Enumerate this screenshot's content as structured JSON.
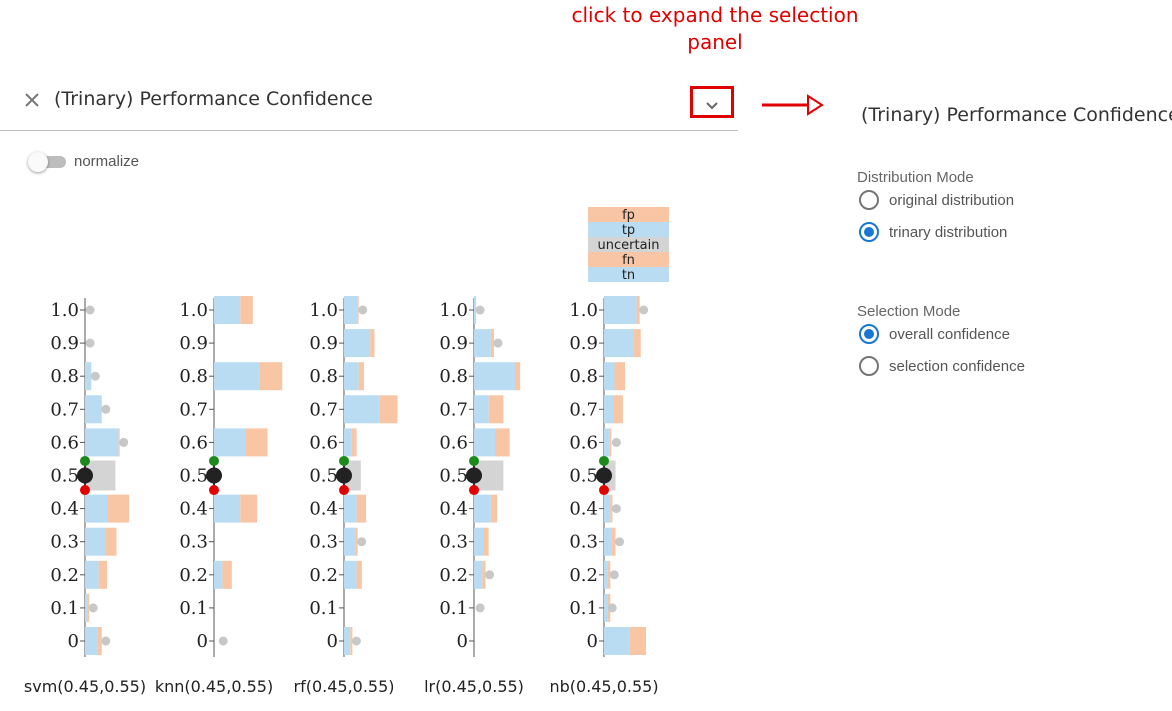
{
  "annotation": {
    "text": "click to expand the selection panel",
    "color": "#e00000"
  },
  "header": {
    "title": "(Trinary) Performance Confidence",
    "close_icon": "close-icon",
    "expand_icon": "chevron-down-icon"
  },
  "normalize": {
    "label": "normalize",
    "enabled": false
  },
  "panel": {
    "title": "(Trinary) Performance Confidence",
    "distribution_mode": {
      "label": "Distribution Mode",
      "options": [
        {
          "label": "original distribution",
          "checked": false
        },
        {
          "label": "trinary distribution",
          "checked": true
        }
      ]
    },
    "selection_mode": {
      "label": "Selection Mode",
      "options": [
        {
          "label": "overall confidence",
          "checked": true
        },
        {
          "label": "selection confidence",
          "checked": false
        }
      ]
    }
  },
  "colors": {
    "tp": "#b9dcf2",
    "tn": "#b9dcf2",
    "fp": "#f8c6a5",
    "fn": "#f8c6a5",
    "uncertain": "#d4d4d4",
    "dot": "#c8c8c8",
    "upper_handle": "#1b8a1b",
    "lower_handle": "#e00000",
    "center_handle": "#222222"
  },
  "chart_data": {
    "type": "bar",
    "orientation": "horizontal",
    "legend": {
      "placement": "top-right",
      "entries": [
        "fp",
        "tp",
        "uncertain",
        "fn",
        "tn"
      ]
    },
    "ticks": [
      "0",
      "0.1",
      "0.2",
      "0.3",
      "0.4",
      "0.5",
      "0.6",
      "0.7",
      "0.8",
      "0.9",
      "1.0"
    ],
    "ylim": [
      0,
      1.0
    ],
    "models": [
      {
        "label": "svm(0.45,0.55)",
        "lower": 0.45,
        "upper": 0.55,
        "upper_bins": [
          {
            "y": 1.0,
            "correct": 0,
            "error": 0,
            "dot": 1
          },
          {
            "y": 0.9,
            "correct": 0,
            "error": 0,
            "dot": 1
          },
          {
            "y": 0.8,
            "correct": 6,
            "error": 0,
            "dot": 6
          },
          {
            "y": 0.7,
            "correct": 16,
            "error": 0,
            "dot": 16
          },
          {
            "y": 0.6,
            "correct": 32,
            "error": 1,
            "dot": 33
          }
        ],
        "uncertain": 29,
        "lower_bins": [
          {
            "y": 0.4,
            "correct": 21,
            "error": 21,
            "dot": null
          },
          {
            "y": 0.3,
            "correct": 20,
            "error": 10,
            "dot": null
          },
          {
            "y": 0.2,
            "correct": 13,
            "error": 8,
            "dot": null
          },
          {
            "y": 0.1,
            "correct": 2,
            "error": 2,
            "dot": 4
          },
          {
            "y": 0,
            "correct": 12,
            "error": 4,
            "dot": 16
          }
        ]
      },
      {
        "label": "knn(0.45,0.55)",
        "lower": 0.45,
        "upper": 0.55,
        "upper_bins": [
          {
            "y": 1.0,
            "correct": 25,
            "error": 12,
            "dot": null
          },
          {
            "y": 0.9,
            "correct": 0,
            "error": 0,
            "dot": null
          },
          {
            "y": 0.8,
            "correct": 43,
            "error": 22,
            "dot": null
          },
          {
            "y": 0.7,
            "correct": 0,
            "error": 0,
            "dot": null
          },
          {
            "y": 0.6,
            "correct": 30,
            "error": 21,
            "dot": null
          }
        ],
        "uncertain": 0,
        "lower_bins": [
          {
            "y": 0.4,
            "correct": 25,
            "error": 16,
            "dot": null
          },
          {
            "y": 0.3,
            "correct": 0,
            "error": 0,
            "dot": null
          },
          {
            "y": 0.2,
            "correct": 8,
            "error": 9,
            "dot": null
          },
          {
            "y": 0.1,
            "correct": 0,
            "error": 0,
            "dot": null
          },
          {
            "y": 0,
            "correct": 0,
            "error": 0,
            "dot": 5
          }
        ]
      },
      {
        "label": "rf(0.45,0.55)",
        "lower": 0.45,
        "upper": 0.55,
        "upper_bins": [
          {
            "y": 1.0,
            "correct": 13,
            "error": 1,
            "dot": 14
          },
          {
            "y": 0.9,
            "correct": 25,
            "error": 4,
            "dot": null
          },
          {
            "y": 0.8,
            "correct": 14,
            "error": 5,
            "dot": null
          },
          {
            "y": 0.7,
            "correct": 34,
            "error": 17,
            "dot": null
          },
          {
            "y": 0.6,
            "correct": 7,
            "error": 5,
            "dot": null
          }
        ],
        "uncertain": 16,
        "lower_bins": [
          {
            "y": 0.4,
            "correct": 12,
            "error": 9,
            "dot": null
          },
          {
            "y": 0.3,
            "correct": 11,
            "error": 2,
            "dot": 13
          },
          {
            "y": 0.2,
            "correct": 12,
            "error": 5,
            "dot": null
          },
          {
            "y": 0.1,
            "correct": 0,
            "error": 0,
            "dot": null
          },
          {
            "y": 0,
            "correct": 6,
            "error": 2,
            "dot": 8
          }
        ]
      },
      {
        "label": "lr(0.45,0.55)",
        "lower": 0.45,
        "upper": 0.55,
        "upper_bins": [
          {
            "y": 1.0,
            "correct": 2,
            "error": 0,
            "dot": 2
          },
          {
            "y": 0.9,
            "correct": 16,
            "error": 3,
            "dot": 19
          },
          {
            "y": 0.8,
            "correct": 39,
            "error": 5,
            "dot": null
          },
          {
            "y": 0.7,
            "correct": 14,
            "error": 14,
            "dot": null
          },
          {
            "y": 0.6,
            "correct": 20,
            "error": 14,
            "dot": null
          }
        ],
        "uncertain": 28,
        "lower_bins": [
          {
            "y": 0.4,
            "correct": 16,
            "error": 6,
            "dot": null
          },
          {
            "y": 0.3,
            "correct": 9,
            "error": 5,
            "dot": null
          },
          {
            "y": 0.2,
            "correct": 8,
            "error": 3,
            "dot": 11
          },
          {
            "y": 0.1,
            "correct": 0,
            "error": 0,
            "dot": 2
          },
          {
            "y": 0,
            "correct": 0,
            "error": 0,
            "dot": null
          }
        ]
      },
      {
        "label": "nb(0.45,0.55)",
        "lower": 0.45,
        "upper": 0.55,
        "upper_bins": [
          {
            "y": 1.0,
            "correct": 31,
            "error": 3,
            "dot": 34
          },
          {
            "y": 0.9,
            "correct": 28,
            "error": 7,
            "dot": null
          },
          {
            "y": 0.8,
            "correct": 10,
            "error": 10,
            "dot": null
          },
          {
            "y": 0.7,
            "correct": 9,
            "error": 9,
            "dot": null
          },
          {
            "y": 0.6,
            "correct": 5,
            "error": 2,
            "dot": 8
          }
        ],
        "uncertain": 11,
        "lower_bins": [
          {
            "y": 0.4,
            "correct": 6,
            "error": 2,
            "dot": 8
          },
          {
            "y": 0.3,
            "correct": 7,
            "error": 4,
            "dot": 11
          },
          {
            "y": 0.2,
            "correct": 3,
            "error": 3,
            "dot": 6
          },
          {
            "y": 0.1,
            "correct": 3,
            "error": 3,
            "dot": 4
          },
          {
            "y": 0,
            "correct": 24,
            "error": 16,
            "dot": null
          }
        ]
      }
    ]
  }
}
